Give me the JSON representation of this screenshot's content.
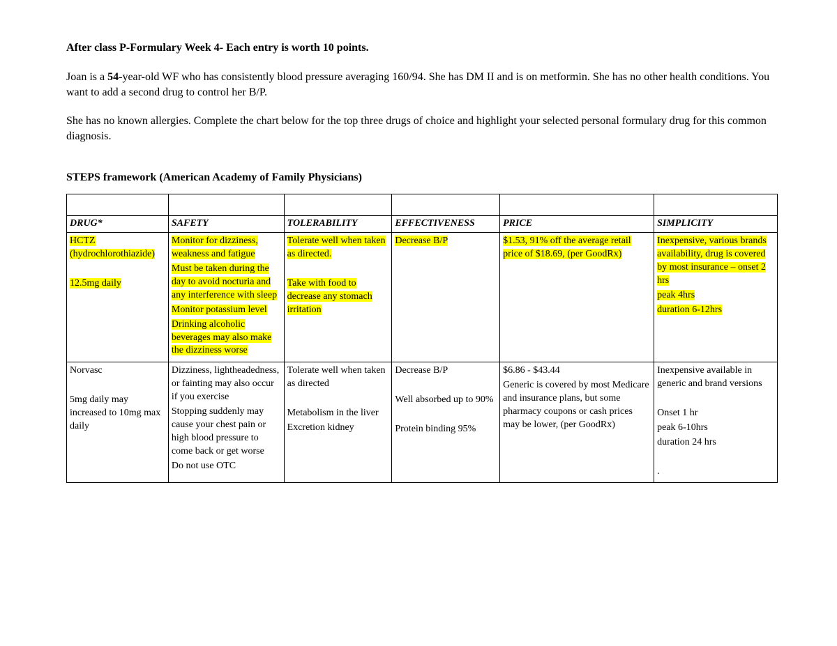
{
  "doc": {
    "title_prefix": "After class P-Formulary Week 4- Each entry is worth 10 points.",
    "para1_a": "Joan is a ",
    "age_bold": "54",
    "para1_b": "-year-old WF who has consistently blood pressure averaging 160/94.  She has DM II and is on metformin.  She has no other health conditions.  You want to add a second drug to control her B/P.",
    "para2": "She has no known allergies. Complete the chart below for the top three drugs of choice and highlight your selected personal formulary drug for this common diagnosis.",
    "framework": "STEPS framework (American Academy of Family Physicians)"
  },
  "table": {
    "columns": [
      "DRUG*",
      "SAFETY",
      "TOLERABILITY",
      "EFFECTIVENESS",
      "PRICE",
      "SIMPLICITY"
    ],
    "col_widths_pct": [
      13.2,
      15.0,
      14.0,
      14.0,
      20.0,
      16.0
    ],
    "border_color": "#000000",
    "highlight_color": "#ffff00",
    "font_size_pt": 11,
    "rows": [
      {
        "highlighted": true,
        "drug": [
          "HCTZ (hydrochlorothiazide)",
          "",
          "12.5mg daily"
        ],
        "safety": [
          "Monitor for dizziness, weakness and fatigue",
          "Must be taken during the day to avoid nocturia and any interference with sleep",
          "Monitor potassium level",
          "Drinking alcoholic beverages may also make the dizziness worse"
        ],
        "tolerability": [
          "Tolerate well when taken as directed.",
          "",
          "Take with food to decrease any stomach irritation"
        ],
        "effectiveness": [
          "Decrease B/P"
        ],
        "price": [
          "$1.53, 91% off the average retail price of $18.69, (per GoodRx)"
        ],
        "simplicity": [
          "Inexpensive, various brands availability, drug is covered by most insurance – onset 2 hrs",
          "peak 4hrs",
          "duration 6-12hrs"
        ]
      },
      {
        "highlighted": false,
        "drug": [
          "Norvasc",
          "",
          "5mg daily may increased to 10mg max daily"
        ],
        "safety": [
          "Dizziness, lightheadedness, or fainting may also occur if you exercise",
          "Stopping suddenly may cause your chest pain or high blood pressure to come back or get worse",
          " Do not use OTC"
        ],
        "tolerability": [
          "Tolerate well when taken as directed",
          "",
          "Metabolism in the liver",
          "Excretion kidney"
        ],
        "effectiveness": [
          "Decrease B/P",
          "",
          "Well absorbed up to 90%",
          "",
          "Protein binding 95%"
        ],
        "price": [
          "$6.86 - $43.44",
          "Generic is covered by most Medicare and insurance plans, but some pharmacy coupons or cash prices may be lower, (per GoodRx)"
        ],
        "simplicity": [
          "Inexpensive available in generic and brand versions",
          "",
          "Onset 1 hr",
          "peak 6-10hrs",
          "duration 24 hrs",
          "",
          "."
        ]
      }
    ]
  }
}
